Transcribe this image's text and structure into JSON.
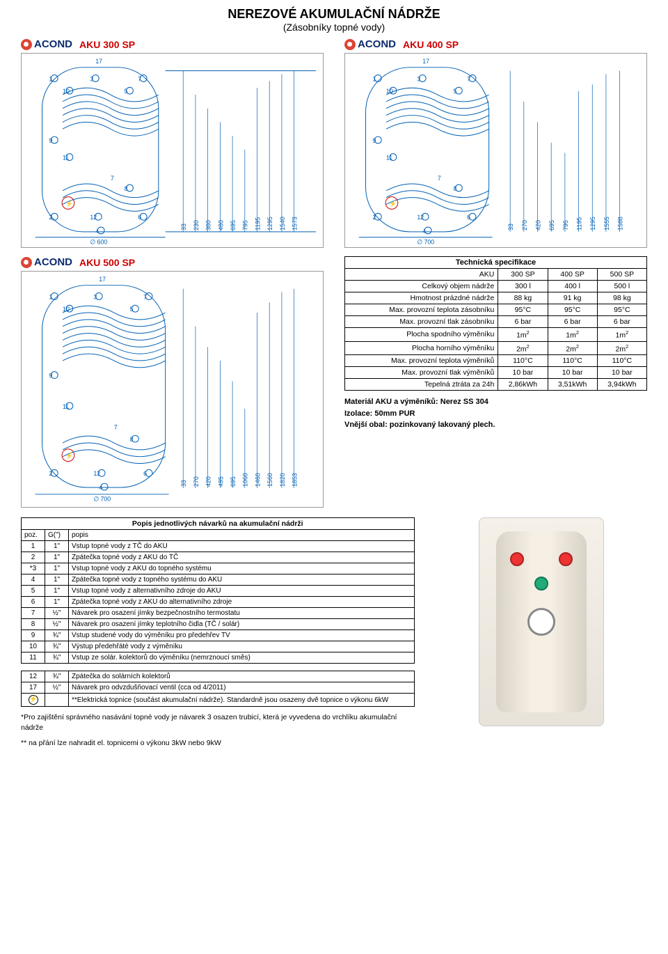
{
  "page_title": "NEREZOVÉ AKUMULAČNÍ NÁDRŽE",
  "page_subtitle": "(Zásobníky topné vody)",
  "brand": "ACOND",
  "models": {
    "aku300": {
      "name": "AKU 300 SP",
      "base_diameter": "∅ 600",
      "dims_vertical": [
        "33",
        "230",
        "380",
        "480",
        "695",
        "795",
        "1195",
        "1295",
        "1540",
        "1573"
      ]
    },
    "aku400": {
      "name": "AKU 400 SP",
      "base_diameter": "∅ 700",
      "dims_vertical": [
        "33",
        "270",
        "420",
        "695",
        "795",
        "1195",
        "1295",
        "1555",
        "1588"
      ]
    },
    "aku500": {
      "name": "AKU 500 SP",
      "base_diameter": "∅ 700",
      "dims_vertical": [
        "33",
        "270",
        "420",
        "495",
        "695",
        "1060",
        "1460",
        "1560",
        "1820",
        "1853"
      ]
    }
  },
  "diagram_ports": [
    "1",
    "2",
    "3",
    "4",
    "5",
    "6",
    "7",
    "8",
    "9",
    "10",
    "11",
    "12",
    "17"
  ],
  "spec": {
    "title": "Technická specifikace",
    "header": [
      "AKU",
      "300 SP",
      "400 SP",
      "500 SP"
    ],
    "rows": [
      {
        "label": "Celkový objem nádrže",
        "v": [
          "300 l",
          "400 l",
          "500 l"
        ]
      },
      {
        "label": "Hmotnost prázdné nádrže",
        "v": [
          "88 kg",
          "91 kg",
          "98 kg"
        ]
      },
      {
        "label": "Max. provozní teplota zásobníku",
        "v": [
          "95°C",
          "95°C",
          "95°C"
        ]
      },
      {
        "label": "Max. provozní tlak zásobníku",
        "v": [
          "6 bar",
          "6 bar",
          "6 bar"
        ]
      },
      {
        "label": "Plocha spodního výměníku",
        "v": [
          "1m²",
          "1m²",
          "1m²"
        ]
      },
      {
        "label": "Plocha horního výměníku",
        "v": [
          "2m²",
          "2m²",
          "2m²"
        ]
      },
      {
        "label": "Max. provozní teplota výměníků",
        "v": [
          "110°C",
          "110°C",
          "110°C"
        ]
      },
      {
        "label": "Max. provozní tlak výměníků",
        "v": [
          "10 bar",
          "10 bar",
          "10 bar"
        ]
      },
      {
        "label": "Tepelná ztráta za 24h",
        "v": [
          "2,86kWh",
          "3,51kWh",
          "3,94kWh"
        ]
      }
    ],
    "notes": [
      "Materiál AKU a výměníků: Nerez SS 304",
      "Izolace: 50mm PUR",
      "Vnější obal: pozinkovaný lakovaný plech."
    ]
  },
  "legend": {
    "title": "Popis jednotlivých návarků na akumulační nádrži",
    "cols": [
      "poz.",
      "G(\")",
      "popis"
    ],
    "rows_a": [
      [
        "1",
        "1\"",
        "Vstup topné vody z TČ do AKU"
      ],
      [
        "2",
        "1\"",
        "Zpátečka topné vody z AKU do TČ"
      ],
      [
        "*3",
        "1\"",
        "Vstup topné vody z AKU do topného systému"
      ],
      [
        "4",
        "1\"",
        "Zpátečka topné vody z topného systému do AKU"
      ],
      [
        "5",
        "1\"",
        "Vstup topné vody z alternativního zdroje do AKU"
      ],
      [
        "6",
        "1\"",
        "Zpátečka topné vody z AKU do alternativního zdroje"
      ],
      [
        "7",
        "½\"",
        "Návarek pro osazení jímky bezpečnostního termostatu"
      ],
      [
        "8",
        "½\"",
        "Návarek pro osazení jímky teplotního čidla (TČ / solár)"
      ],
      [
        "9",
        "¾\"",
        "Vstup studené vody do výměníku pro předehřev TV"
      ],
      [
        "10",
        "¾\"",
        "Výstup předehřáté vody z výměníku"
      ],
      [
        "11",
        "¾\"",
        "Vstup ze solár. kolektorů do výměníku (nemrznoucí směs)"
      ]
    ],
    "rows_b": [
      [
        "12",
        "¾\"",
        "Zpátečka do solárních kolektorů"
      ],
      [
        "17",
        "½\"",
        "Návarek pro odvzdušňovací ventil (cca od 4/2011)"
      ],
      [
        "⚡",
        "",
        "**Elektrická topnice (součást akumulační nádrže). Standardně jsou osazeny dvě topnice o výkonu 6kW"
      ]
    ]
  },
  "footnotes": {
    "f1": "*Pro zajištění správného nasávání topné vody je návarek 3 osazen trubicí, která je vyvedena do vrchlíku akumulační nádrže",
    "f2": "** na přání lze nahradit el. topnicemi o výkonu 3kW nebo 9kW"
  },
  "colors": {
    "brand_red": "#c00",
    "brand_blue": "#0a2a6e",
    "line": "#005fb3",
    "dim_text": "#005fb3"
  }
}
